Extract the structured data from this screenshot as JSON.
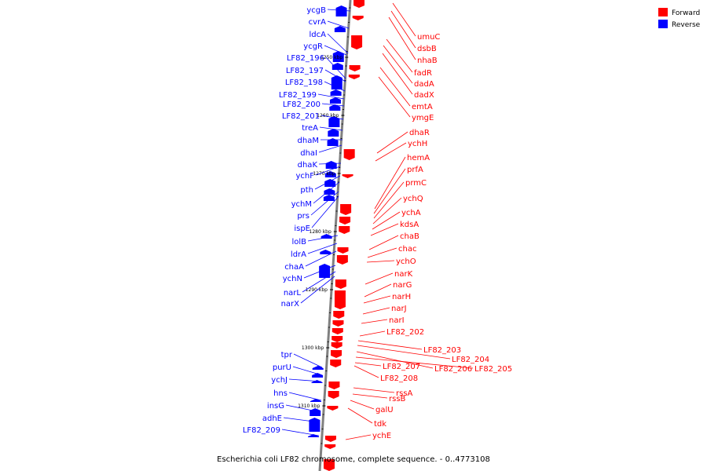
{
  "caption": "Escherichia coli LF82 chromosome, complete sequence. - 0..4773108",
  "legend": [
    {
      "label": "Forward",
      "color": "#ff0000"
    },
    {
      "label": "Reverse",
      "color": "#0000ff"
    }
  ],
  "colors": {
    "forward": "#ff0000",
    "reverse": "#0000ff",
    "backbone": "#808080"
  },
  "scale_ticks": [
    "1250 kbp",
    "1260 kbp",
    "1270 kbp",
    "1280 kbp",
    "1290 kbp",
    "1300 kbp",
    "1310 kbp"
  ],
  "reverse_genes": [
    "ycgB",
    "cvrA",
    "ldcA",
    "ycgR",
    "LF82_196",
    "LF82_197",
    "LF82_198",
    "LF82_199",
    "LF82_200",
    "LF82_201",
    "treA",
    "dhaM",
    "dhaI",
    "dhaK",
    "ychF",
    "pth",
    "ychM",
    "prs",
    "ispE",
    "lolB",
    "ldrA",
    "chaA",
    "ychN",
    "narL",
    "narX",
    "tpr",
    "purU",
    "ychJ",
    "hns",
    "insG",
    "adhE",
    "LF82_209"
  ],
  "forward_genes": [
    "umuC",
    "dsbB",
    "nhaB",
    "fadR",
    "dadA",
    "dadX",
    "emtA",
    "ymgE",
    "dhaR",
    "ychH",
    "hemA",
    "prfA",
    "prmC",
    "ychQ",
    "ychA",
    "kdsA",
    "chaB",
    "chac",
    "ychO",
    "narK",
    "narG",
    "narH",
    "narJ",
    "narI",
    "LF82_202",
    "LF82_203",
    "LF82_204",
    "LF82_206",
    "LF82_205",
    "LF82_207",
    "LF82_208",
    "rssA",
    "rssB",
    "galU",
    "tdk",
    "ychE"
  ]
}
